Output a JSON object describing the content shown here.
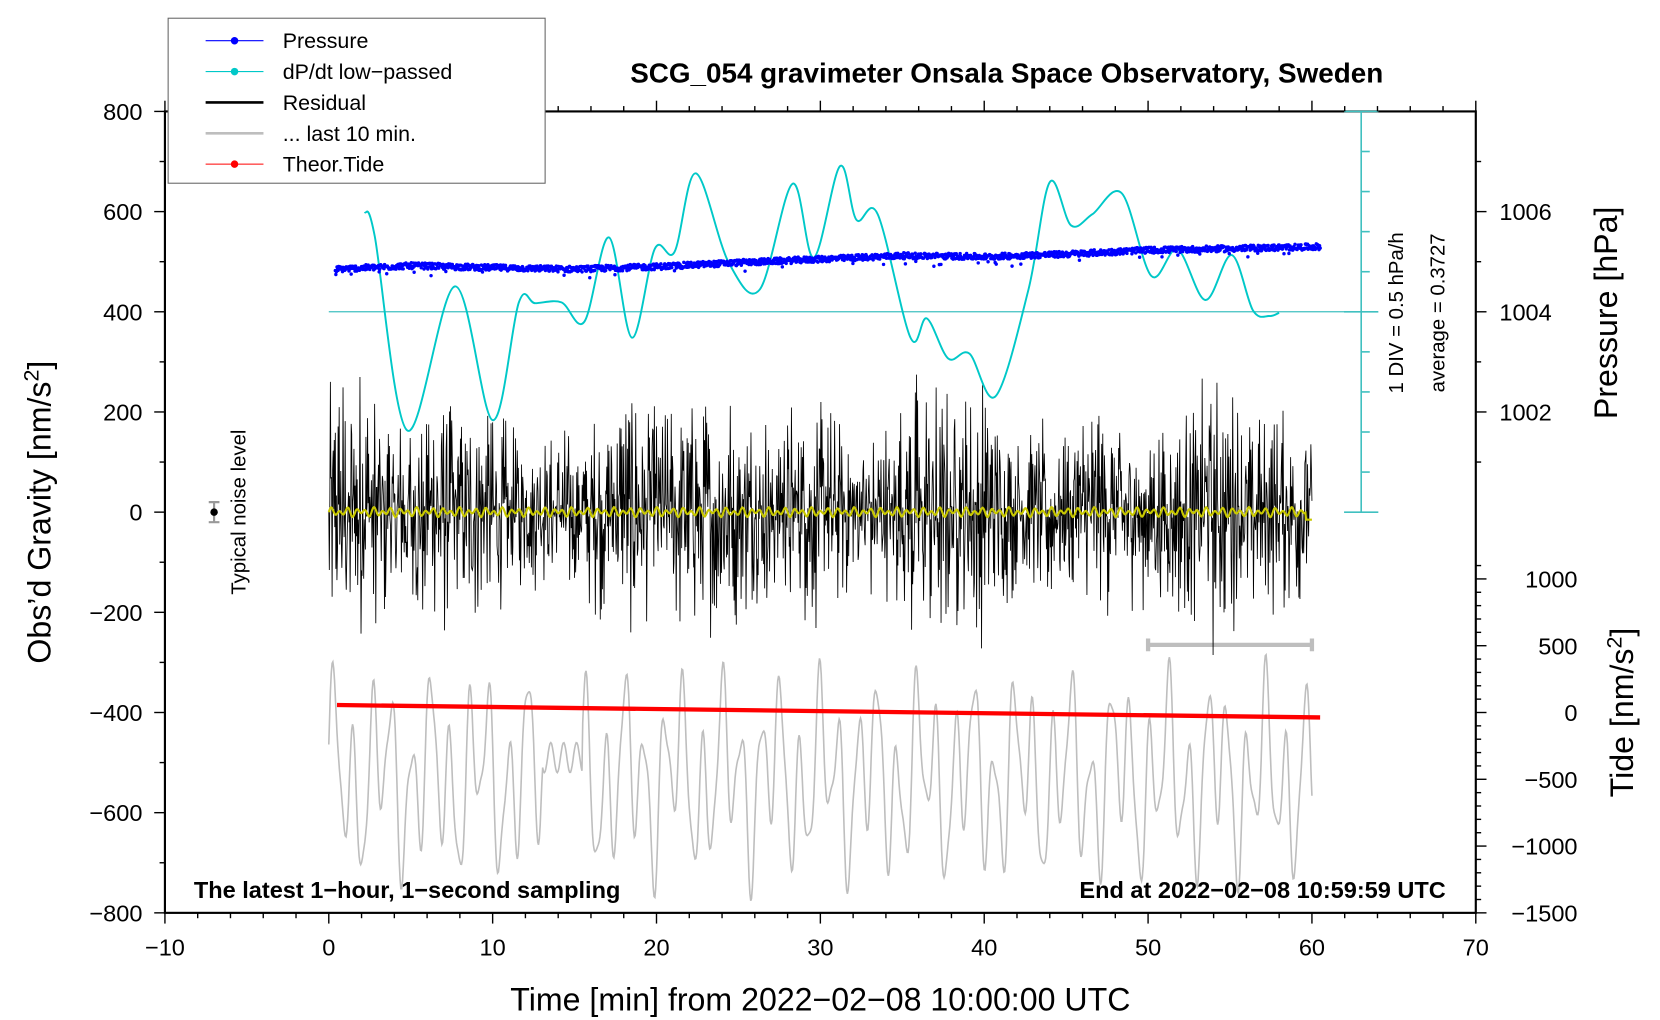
{
  "chart_data": {
    "type": "line",
    "title": "SCG_054 gravimeter Onsala Space Observatory, Sweden",
    "xlabel": "Time [min] from 2022−02−08 10:00:00 UTC",
    "ylabel": {
      "main": "Obs’d Gravity [nm/s",
      "sup": "2",
      "end": "]"
    },
    "y2label": "Pressure [hPa]",
    "y3label": {
      "main": "Tide [nm/s",
      "sup": "2",
      "end": "]"
    },
    "xlim": [
      -10,
      70
    ],
    "ylim": [
      -800,
      800
    ],
    "pressure_lim": [
      1000,
      1008
    ],
    "tide_lim": [
      -1500,
      1500
    ],
    "x_ticks": [
      "−10",
      "0",
      "10",
      "20",
      "30",
      "40",
      "50",
      "60",
      "70"
    ],
    "x_tick_values": [
      -10,
      0,
      10,
      20,
      30,
      40,
      50,
      60,
      70
    ],
    "y_ticks": [
      "800",
      "600",
      "400",
      "200",
      "0",
      "−200",
      "−400",
      "−600",
      "−800"
    ],
    "y_tick_values": [
      800,
      600,
      400,
      200,
      0,
      -200,
      -400,
      -600,
      -800
    ],
    "pressure_ticks": [
      "1006",
      "1004",
      "1002"
    ],
    "pressure_tick_values": [
      1006,
      1004,
      1002
    ],
    "tide_ticks": [
      "1000",
      "500",
      "0",
      "−500",
      "−1000",
      "−1500"
    ],
    "tide_tick_values": [
      1000,
      500,
      0,
      -500,
      -1000,
      -1500
    ],
    "legend": {
      "position": "top-left",
      "entries": [
        {
          "label": "Pressure",
          "color": "#0000ff",
          "marker": true
        },
        {
          "label": "dP/dt low−passed",
          "color": "#00c8c8",
          "marker": true
        },
        {
          "label": "Residual",
          "color": "#000000",
          "marker": false
        },
        {
          "label": "... last 10 min.",
          "color": "#bebebe",
          "marker": false
        },
        {
          "label": "Theor.Tide",
          "color": "#ff0000",
          "marker": true
        }
      ]
    },
    "dpdt": {
      "div_label": "1 DIV = 0.5 hPa/h",
      "average_label": "average = 0.3727",
      "average": 0.3727,
      "per_div": 0.5,
      "x": [
        2.2,
        2.8,
        4.8,
        7.7,
        10.0,
        11.6,
        12.6,
        14.2,
        15.6,
        17.1,
        18.5,
        19.9,
        21.1,
        22.4,
        24.4,
        26.3,
        28.3,
        29.6,
        31.2,
        32.2,
        33.5,
        35.5,
        36.5,
        37.8,
        39.1,
        40.7,
        42.7,
        44.0,
        45.3,
        46.6,
        48.4,
        50.2,
        51.8,
        53.5,
        55.1,
        56.4,
        57.4,
        58.0
      ],
      "values": [
        1.62,
        1.32,
        -1.11,
        0.69,
        -0.98,
        0.49,
        0.48,
        0.49,
        0.25,
        1.3,
        0.05,
        1.16,
        1.12,
        2.1,
        0.99,
        0.65,
        1.97,
        1.05,
        2.19,
        1.52,
        1.59,
        0.05,
        0.29,
        -0.21,
        -0.15,
        -0.68,
        0.65,
        1.99,
        1.45,
        1.59,
        1.85,
        0.82,
        1.15,
        0.52,
        1.08,
        0.39,
        0.32,
        0.36
      ]
    },
    "pressure": {
      "x": [
        0.4,
        5,
        10,
        15,
        20,
        25,
        30,
        35,
        40,
        45,
        50,
        55,
        60.5
      ],
      "values": [
        1004.85,
        1004.92,
        1004.88,
        1004.85,
        1004.9,
        1004.98,
        1005.05,
        1005.12,
        1005.1,
        1005.15,
        1005.23,
        1005.26,
        1005.3
      ]
    },
    "tide": {
      "x": [
        0.5,
        60.5
      ],
      "values": [
        56,
        -37
      ]
    },
    "residual": {
      "x_range": [
        0,
        60
      ],
      "envelope_minutes": [
        0,
        2,
        4,
        6,
        8,
        10,
        12,
        14,
        16,
        18,
        20,
        22,
        24,
        26,
        28,
        30,
        32,
        34,
        36,
        38,
        40,
        42,
        44,
        46,
        48,
        50,
        52,
        54,
        56,
        58,
        60
      ],
      "envelope": [
        300,
        320,
        200,
        280,
        240,
        230,
        160,
        170,
        200,
        260,
        240,
        250,
        260,
        200,
        230,
        240,
        200,
        190,
        300,
        250,
        280,
        160,
        200,
        230,
        210,
        200,
        230,
        300,
        220,
        210,
        200
      ]
    },
    "last_10_min": {
      "x_range": [
        50,
        60
      ],
      "center": -530,
      "amplitude": 170
    },
    "noise_level": {
      "label": "Typical noise level",
      "x": -7,
      "value": 0,
      "error": 20
    },
    "annotations": {
      "bottom_left": "The latest 1−hour, 1−second sampling",
      "bottom_right": "End at 2022−02−08 10:59:59 UTC"
    }
  }
}
